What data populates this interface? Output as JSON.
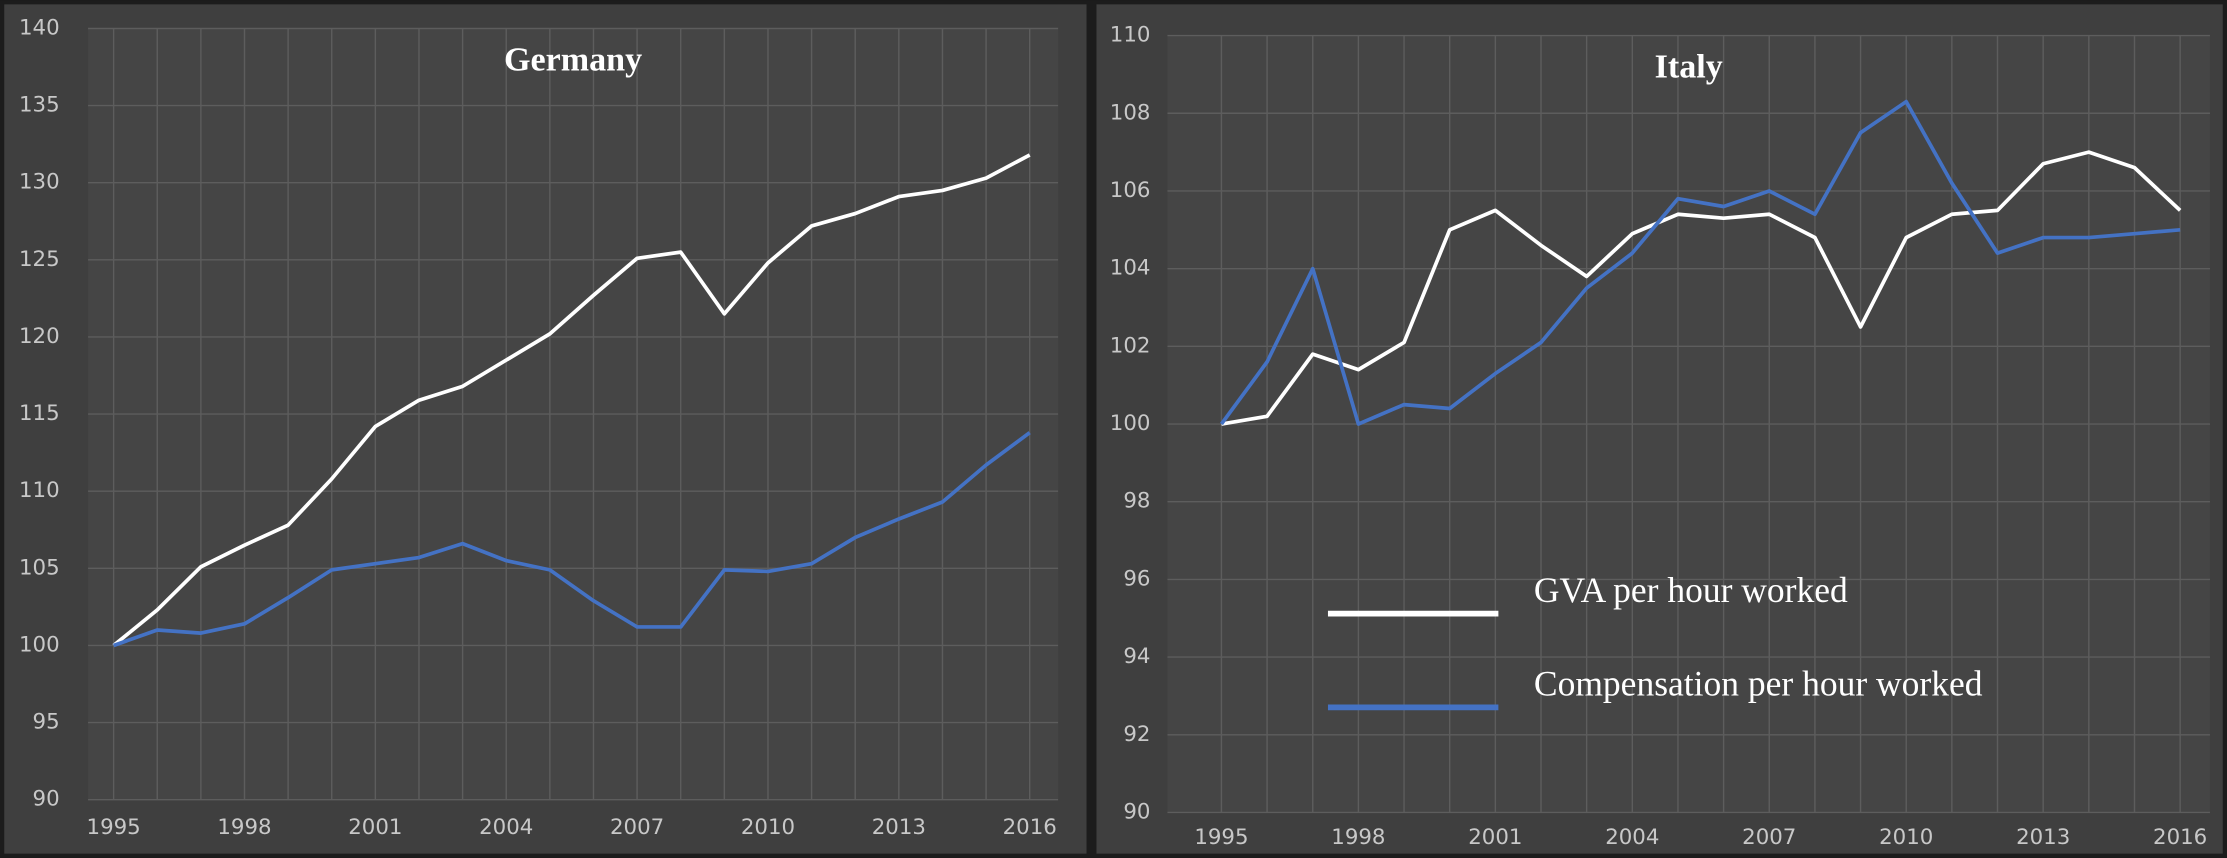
{
  "chart_data": [
    {
      "type": "line",
      "title": "Germany",
      "x": [
        1995,
        1996,
        1997,
        1998,
        1999,
        2000,
        2001,
        2002,
        2003,
        2004,
        2005,
        2006,
        2007,
        2008,
        2009,
        2010,
        2011,
        2012,
        2013,
        2014,
        2015,
        2016
      ],
      "xlim": [
        1995,
        2016
      ],
      "xticks": [
        1995,
        1998,
        2001,
        2004,
        2007,
        2010,
        2013,
        2016
      ],
      "ylim": [
        90,
        140
      ],
      "yticks": [
        90,
        95,
        100,
        105,
        110,
        115,
        120,
        125,
        130,
        135,
        140
      ],
      "grid": true,
      "series": [
        {
          "color": "#ffffff",
          "values": [
            100,
            102.3,
            105.1,
            106.5,
            107.8,
            110.8,
            114.2,
            115.9,
            116.8,
            118.5,
            120.2,
            122.7,
            125.1,
            125.5,
            121.5,
            124.8,
            127.2,
            128,
            129.1,
            129.5,
            130.3,
            131.8
          ]
        },
        {
          "color": "#4472c4",
          "values": [
            100,
            101,
            100.8,
            101.4,
            103.1,
            104.9,
            105.3,
            105.7,
            106.6,
            105.5,
            104.9,
            102.9,
            101.2,
            101.2,
            104.9,
            104.8,
            105.3,
            107,
            108.2,
            109.3,
            111.7,
            113.8
          ]
        }
      ]
    },
    {
      "type": "line",
      "title": "Italy",
      "x": [
        1995,
        1996,
        1997,
        1998,
        1999,
        2000,
        2001,
        2002,
        2003,
        2004,
        2005,
        2006,
        2007,
        2008,
        2009,
        2010,
        2011,
        2012,
        2013,
        2014,
        2015,
        2016
      ],
      "xlim": [
        1995,
        2016
      ],
      "xticks": [
        1995,
        1998,
        2001,
        2004,
        2007,
        2010,
        2013,
        2016
      ],
      "ylim": [
        90,
        110
      ],
      "yticks": [
        90,
        92,
        94,
        96,
        98,
        100,
        102,
        104,
        106,
        108,
        110
      ],
      "grid": true,
      "legend": "bottom-left",
      "series": [
        {
          "name": "GVA per hour worked",
          "color": "#ffffff",
          "values": [
            100,
            100.2,
            101.8,
            101.4,
            102.1,
            105,
            105.5,
            104.6,
            103.8,
            104.9,
            105.4,
            105.3,
            105.4,
            104.8,
            102.5,
            104.8,
            105.4,
            105.5,
            106.7,
            107,
            106.6,
            105.5
          ]
        },
        {
          "name": "Compensation per hour worked",
          "color": "#4472c4",
          "values": [
            100,
            101.6,
            104,
            100,
            100.5,
            100.4,
            101.3,
            102.1,
            103.5,
            104.4,
            105.8,
            105.6,
            106,
            105.4,
            107.5,
            108.3,
            106.2,
            104.4,
            104.8,
            104.8,
            104.9,
            105
          ]
        }
      ]
    }
  ]
}
